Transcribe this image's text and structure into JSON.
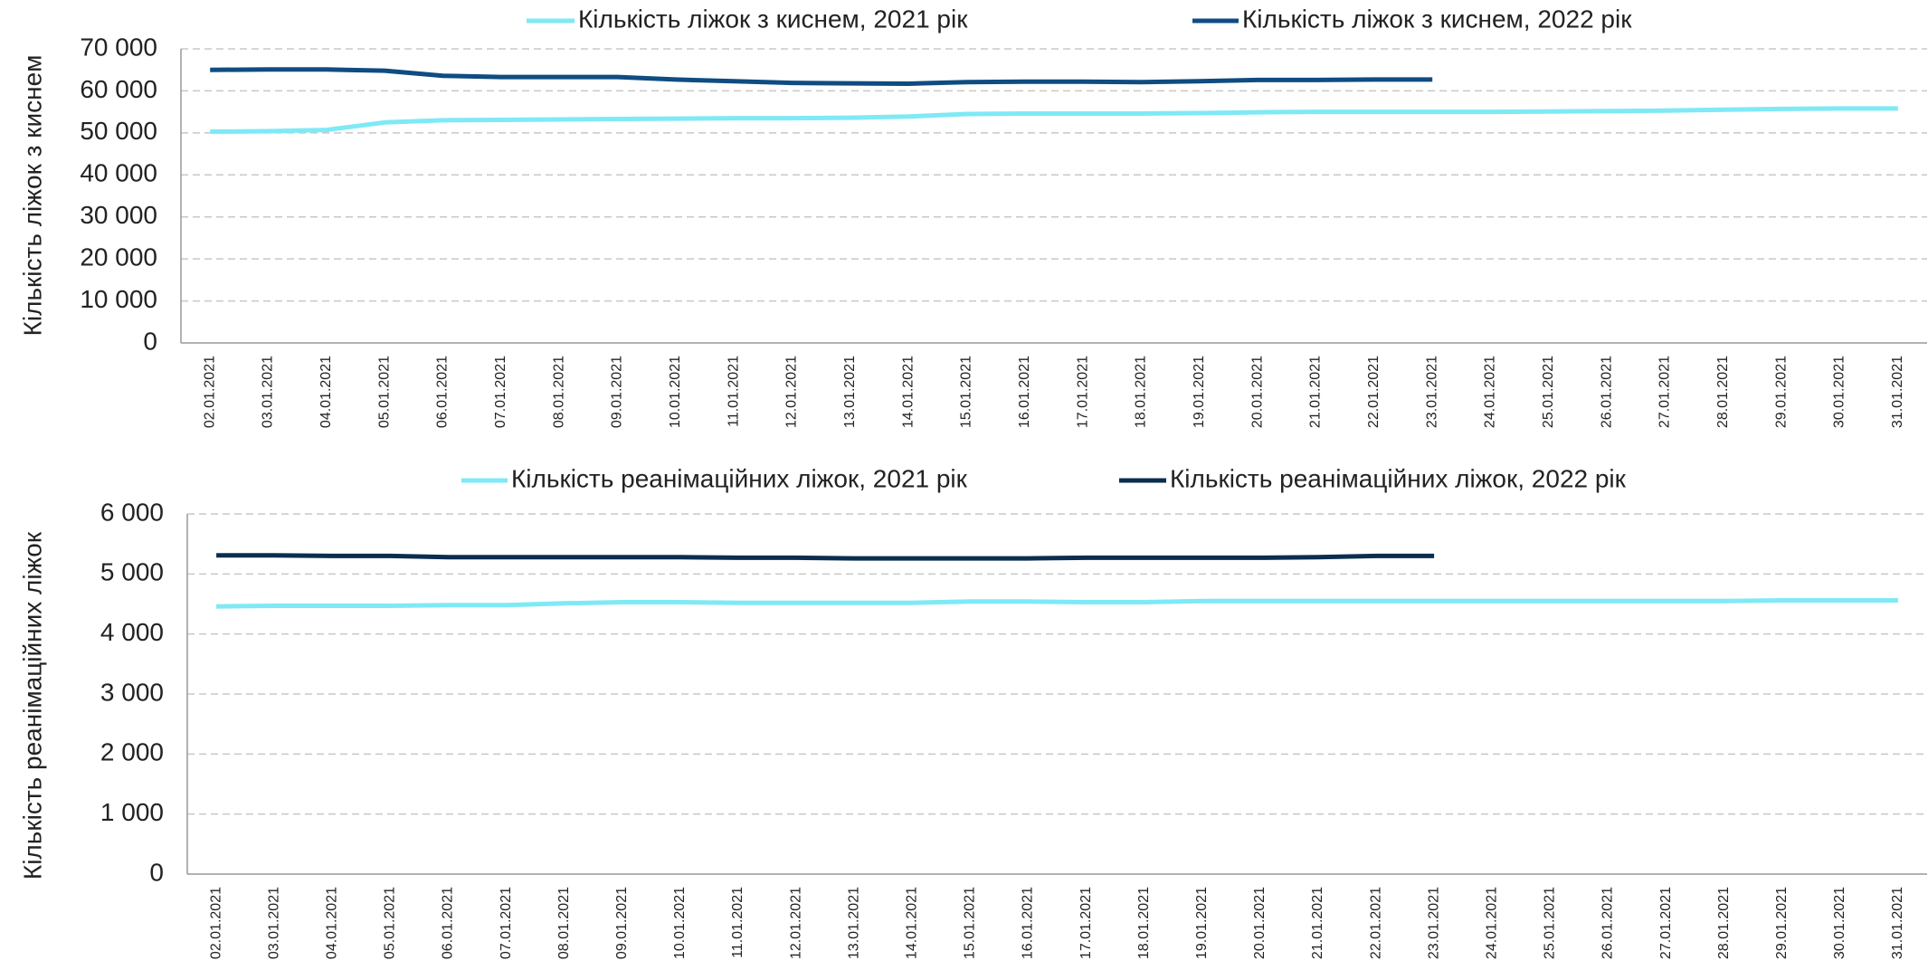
{
  "chart_data": [
    {
      "type": "line",
      "y_label": "Кількість ліжок з киснем",
      "categories": [
        "02.01.2021",
        "03.01.2021",
        "04.01.2021",
        "05.01.2021",
        "06.01.2021",
        "07.01.2021",
        "08.01.2021",
        "09.01.2021",
        "10.01.2021",
        "11.01.2021",
        "12.01.2021",
        "13.01.2021",
        "14.01.2021",
        "15.01.2021",
        "16.01.2021",
        "17.01.2021",
        "18.01.2021",
        "19.01.2021",
        "20.01.2021",
        "21.01.2021",
        "22.01.2021",
        "23.01.2021",
        "24.01.2021",
        "25.01.2021",
        "26.01.2021",
        "27.01.2021",
        "28.01.2021",
        "29.01.2021",
        "30.01.2021",
        "31.01.2021"
      ],
      "series": [
        {
          "name": "Кількість ліжок з киснем, 2021 рік",
          "color": "#7fe9f6",
          "values": [
            50300,
            50400,
            50700,
            52500,
            53000,
            53100,
            53200,
            53300,
            53400,
            53500,
            53500,
            53600,
            53900,
            54500,
            54600,
            54600,
            54600,
            54700,
            54900,
            55000,
            55000,
            55000,
            55000,
            55100,
            55200,
            55300,
            55500,
            55700,
            55800,
            55800
          ]
        },
        {
          "name": "Кількість ліжок з киснем, 2022 рік",
          "color": "#0f4c81",
          "values": [
            65000,
            65100,
            65100,
            64800,
            63600,
            63300,
            63300,
            63300,
            62700,
            62300,
            61900,
            61800,
            61700,
            62100,
            62200,
            62200,
            62100,
            62300,
            62600,
            62600,
            62700,
            62700,
            null,
            null,
            null,
            null,
            null,
            null,
            null,
            null
          ]
        }
      ],
      "ylim": [
        0,
        70000
      ],
      "yticks": [
        0,
        {
          "value": 10000,
          "label": "10 000"
        },
        {
          "value": 20000,
          "label": "20 000"
        },
        {
          "value": 30000,
          "label": "30 000"
        },
        {
          "value": 40000,
          "label": "40 000"
        },
        {
          "value": 50000,
          "label": "50 000"
        },
        {
          "value": 60000,
          "label": "60 000"
        },
        {
          "value": 70000,
          "label": "70 000"
        }
      ],
      "grid": true,
      "legend": "top"
    },
    {
      "type": "line",
      "y_label": "Кількість реанімаційних ліжок",
      "categories": [
        "02.01.2021",
        "03.01.2021",
        "04.01.2021",
        "05.01.2021",
        "06.01.2021",
        "07.01.2021",
        "08.01.2021",
        "09.01.2021",
        "10.01.2021",
        "11.01.2021",
        "12.01.2021",
        "13.01.2021",
        "14.01.2021",
        "15.01.2021",
        "16.01.2021",
        "17.01.2021",
        "18.01.2021",
        "19.01.2021",
        "20.01.2021",
        "21.01.2021",
        "22.01.2021",
        "23.01.2021",
        "24.01.2021",
        "25.01.2021",
        "26.01.2021",
        "27.01.2021",
        "28.01.2021",
        "29.01.2021",
        "30.01.2021",
        "31.01.2021"
      ],
      "series": [
        {
          "name": "Кількість реанімаційних ліжок, 2021 рік",
          "color": "#7fe9f6",
          "values": [
            4460,
            4470,
            4470,
            4470,
            4480,
            4480,
            4510,
            4530,
            4530,
            4520,
            4520,
            4520,
            4520,
            4540,
            4540,
            4530,
            4530,
            4550,
            4550,
            4550,
            4550,
            4550,
            4550,
            4550,
            4550,
            4550,
            4550,
            4560,
            4560,
            4560
          ]
        },
        {
          "name": "Кількість реанімаційних ліжок, 2022 рік",
          "color": "#0b2e4f",
          "values": [
            5310,
            5310,
            5300,
            5300,
            5280,
            5280,
            5280,
            5280,
            5280,
            5270,
            5270,
            5260,
            5260,
            5260,
            5260,
            5270,
            5270,
            5270,
            5270,
            5280,
            5300,
            5300,
            null,
            null,
            null,
            null,
            null,
            null,
            null,
            null
          ]
        }
      ],
      "ylim": [
        0,
        6000
      ],
      "yticks": [
        0,
        {
          "value": 1000,
          "label": "1 000"
        },
        {
          "value": 2000,
          "label": "2 000"
        },
        {
          "value": 3000,
          "label": "3 000"
        },
        {
          "value": 4000,
          "label": "4 000"
        },
        {
          "value": 5000,
          "label": "5 000"
        },
        {
          "value": 6000,
          "label": "6 000"
        }
      ],
      "grid": true,
      "legend": "top"
    }
  ]
}
